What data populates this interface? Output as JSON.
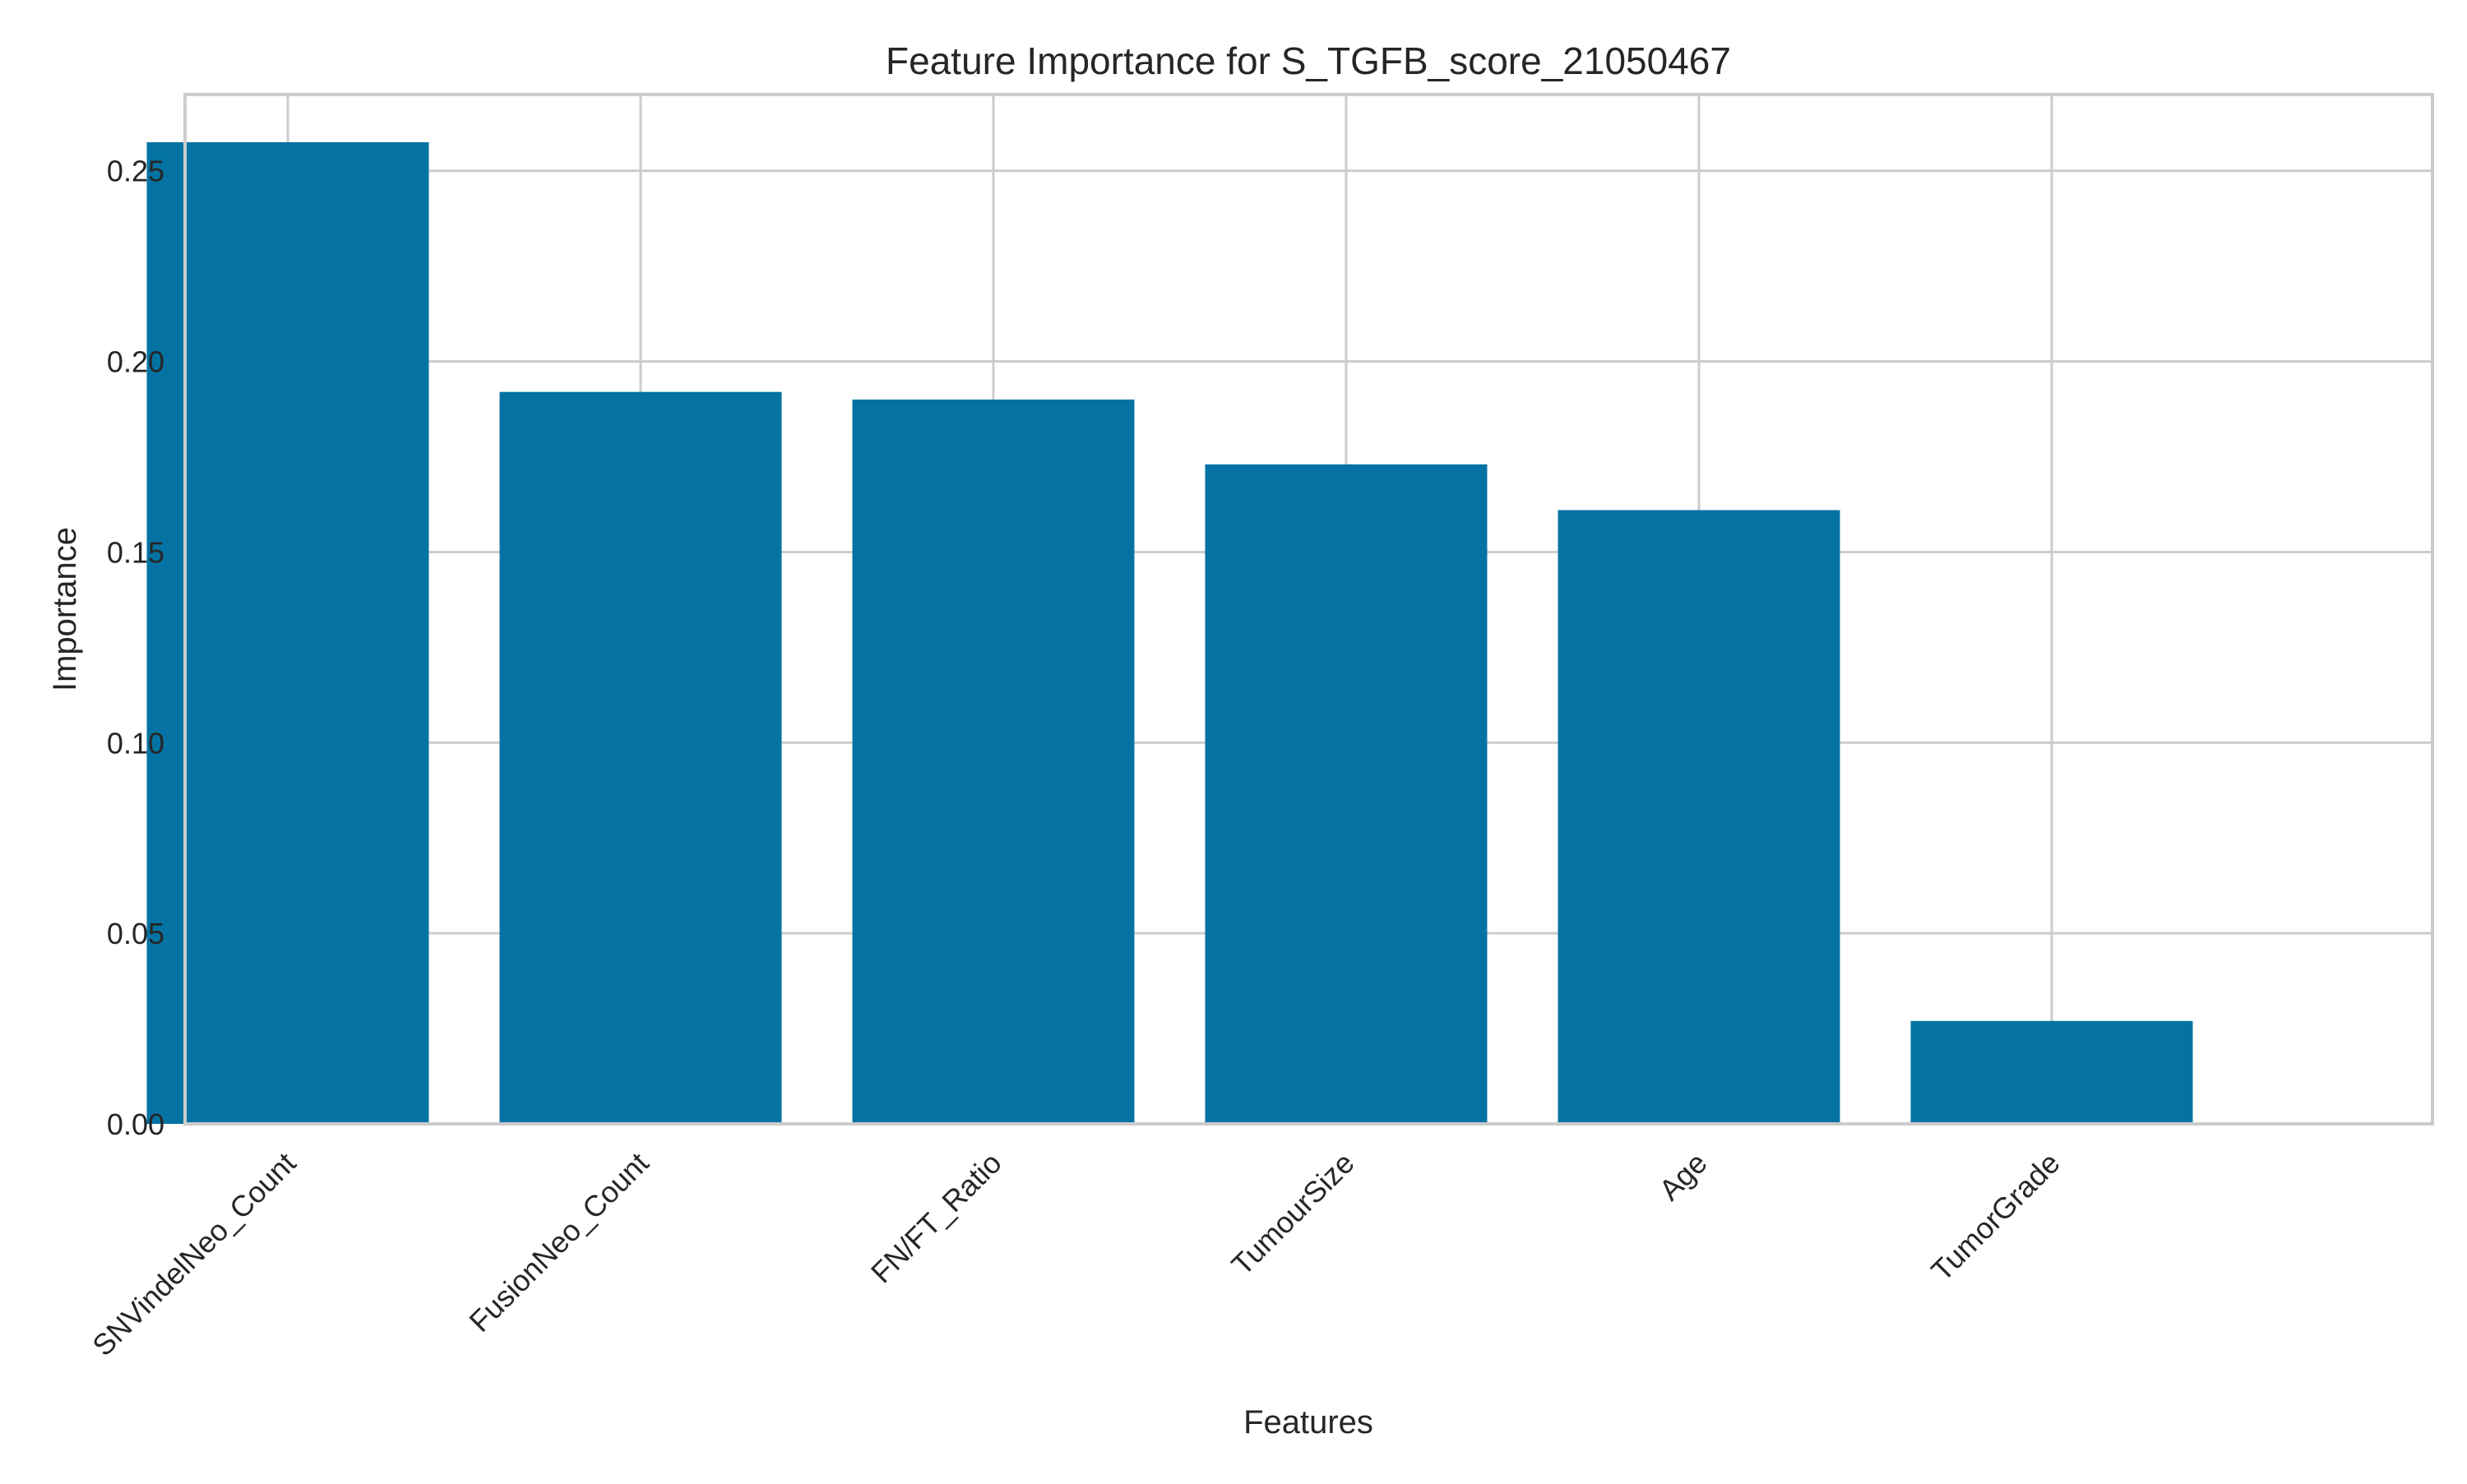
{
  "chart_data": {
    "type": "bar",
    "title": "Feature Importance for S_TGFB_score_21050467",
    "xlabel": "Features",
    "ylabel": "Importance",
    "categories": [
      "SNVindelNeo_Count",
      "FusionNeo_Count",
      "FN/FT_Ratio",
      "TumourSize",
      "Age",
      "TumorGrade"
    ],
    "values": [
      0.2575,
      0.192,
      0.19,
      0.173,
      0.161,
      0.027
    ],
    "ylim": [
      0,
      0.27
    ],
    "yticks": [
      "0.00",
      "0.05",
      "0.10",
      "0.15",
      "0.20",
      "0.25"
    ],
    "grid": true,
    "bar_color": "#0473a3",
    "grid_color": "#cccccc",
    "spine_color": "#cccccc"
  }
}
